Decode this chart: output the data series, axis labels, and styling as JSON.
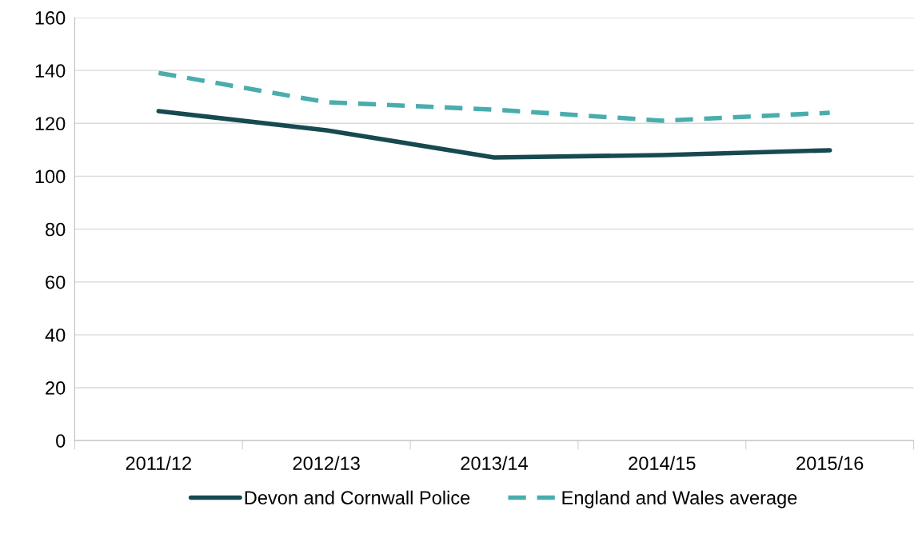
{
  "chart_data": {
    "type": "line",
    "categories": [
      "2011/12",
      "2012/13",
      "2013/14",
      "2014/15",
      "2015/16"
    ],
    "series": [
      {
        "name": "Devon and Cornwall Police",
        "color": "#174a50",
        "values": [
          124.6,
          117.4,
          107.1,
          108,
          109.8
        ],
        "line_style": "solid"
      },
      {
        "name": "England and Wales average",
        "color": "#4aadad",
        "values": [
          139.1,
          128,
          125.2,
          121,
          124
        ],
        "line_style": "dashed"
      }
    ],
    "ylim": [
      0,
      160
    ],
    "yticks": [
      0,
      20,
      40,
      60,
      80,
      100,
      120,
      140,
      160
    ],
    "grid": "y",
    "legend": "bottom",
    "marker": "none"
  }
}
